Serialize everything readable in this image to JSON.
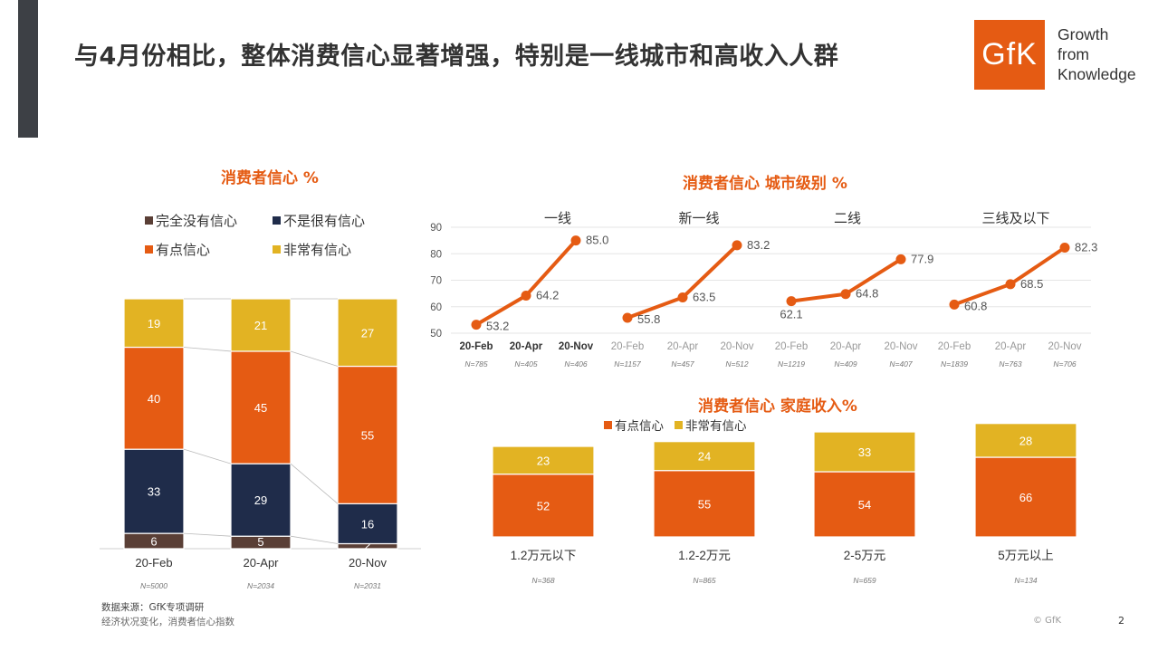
{
  "title": "与4月份相比，整体消费信心显著增强，特别是一线城市和高收入人群",
  "logo": {
    "mark": "GfK",
    "tagline": [
      "Growth",
      "from",
      "Knowledge"
    ]
  },
  "colors": {
    "dark_brown": "#5a3f36",
    "navy": "#1f2c4a",
    "orange": "#e55b13",
    "gold": "#e2b323",
    "line": "#e55b13"
  },
  "footer": {
    "source": "数据来源：GfK专项调研",
    "note": "经济状况变化，消费者信心指数",
    "copyright": "© GfK",
    "page": "2"
  },
  "chart_data": [
    {
      "type": "bar",
      "stacked": true,
      "title": "消费者信心 %",
      "legend": [
        "完全没有信心",
        "不是很有信心",
        "有点信心",
        "非常有信心"
      ],
      "categories": [
        "20-Feb",
        "20-Apr",
        "20-Nov"
      ],
      "sample_sizes": [
        "N=5000",
        "N=2034",
        "N=2031"
      ],
      "series": [
        {
          "name": "完全没有信心",
          "values": [
            6,
            5,
            2
          ]
        },
        {
          "name": "不是很有信心",
          "values": [
            33,
            29,
            16
          ]
        },
        {
          "name": "有点信心",
          "values": [
            40,
            45,
            55
          ]
        },
        {
          "name": "非常有信心",
          "values": [
            19,
            21,
            27
          ]
        }
      ]
    },
    {
      "type": "line",
      "title": "消费者信心 城市级别 %",
      "ylim": [
        50,
        90
      ],
      "yticks": [
        "50",
        "60",
        "70",
        "80",
        "90"
      ],
      "groups": [
        {
          "name": "一线",
          "x": [
            "20-Feb",
            "20-Apr",
            "20-Nov"
          ],
          "values": [
            53.2,
            64.2,
            85.0
          ],
          "labels": [
            "53.2",
            "64.2",
            "85.0"
          ],
          "n": [
            "N=785",
            "N=405",
            "N=406"
          ]
        },
        {
          "name": "新一线",
          "x": [
            "20-Feb",
            "20-Apr",
            "20-Nov"
          ],
          "values": [
            55.8,
            63.5,
            83.2
          ],
          "labels": [
            "55.8",
            "63.5",
            "83.2"
          ],
          "n": [
            "N=1157",
            "N=457",
            "N=512"
          ]
        },
        {
          "name": "二线",
          "x": [
            "20-Feb",
            "20-Apr",
            "20-Nov"
          ],
          "values": [
            62.1,
            64.8,
            77.9
          ],
          "labels": [
            "62.1",
            "64.8",
            "77.9"
          ],
          "n": [
            "N=1219",
            "N=409",
            "N=407"
          ]
        },
        {
          "name": "三线及以下",
          "x": [
            "20-Feb",
            "20-Apr",
            "20-Nov"
          ],
          "values": [
            60.8,
            68.5,
            82.3
          ],
          "labels": [
            "60.8",
            "68.5",
            "82.3"
          ],
          "n": [
            "N=1839",
            "N=763",
            "N=706"
          ]
        }
      ]
    },
    {
      "type": "bar",
      "stacked": true,
      "title": "消费者信心 家庭收入%",
      "legend": [
        "有点信心",
        "非常有信心"
      ],
      "categories": [
        "1.2万元以下",
        "1.2-2万元",
        "2-5万元",
        "5万元以上"
      ],
      "sample_sizes": [
        "N=368",
        "N=865",
        "N=659",
        "N=134"
      ],
      "series": [
        {
          "name": "有点信心",
          "values": [
            52,
            55,
            54,
            66
          ]
        },
        {
          "name": "非常有信心",
          "values": [
            23,
            24,
            33,
            28
          ]
        }
      ]
    }
  ]
}
